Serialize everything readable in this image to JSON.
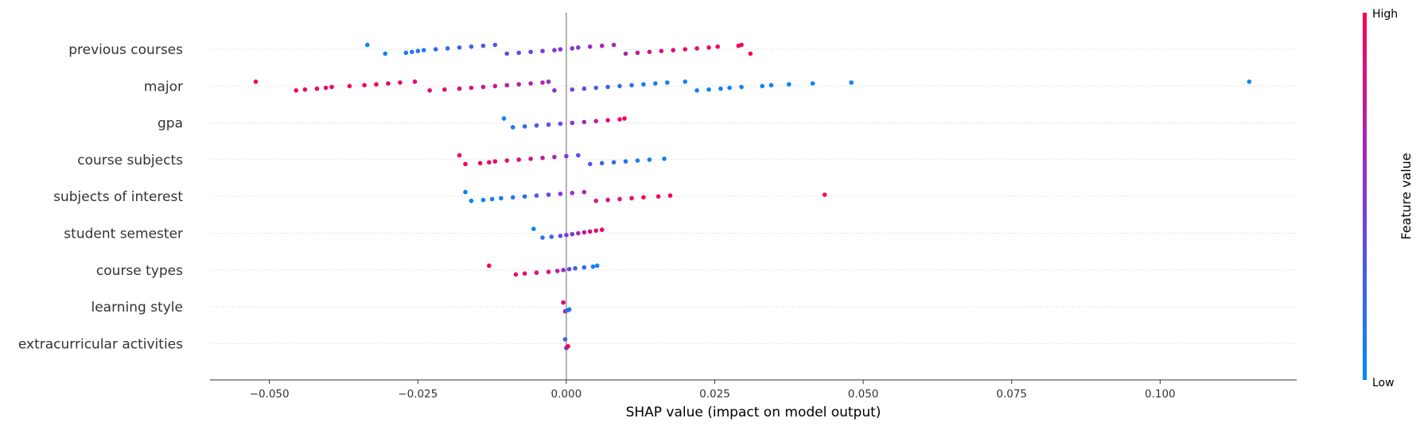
{
  "colors": {
    "low": "#008afb",
    "high": "#ff0052"
  },
  "chart_data": {
    "type": "scatter",
    "subtype": "shap-beeswarm",
    "title": "",
    "xlabel": "SHAP value (impact on model output)",
    "ylabel": "",
    "xlim": [
      -0.06,
      0.123
    ],
    "xticks": [
      -0.05,
      -0.025,
      0.0,
      0.025,
      0.05,
      0.075,
      0.1
    ],
    "xtick_labels": [
      "−0.050",
      "−0.025",
      "0.000",
      "0.025",
      "0.050",
      "0.075",
      "0.100"
    ],
    "colorbar": {
      "label": "Feature value",
      "high": "High",
      "low": "Low"
    },
    "features": [
      {
        "name": "previous courses",
        "points": [
          [
            -0.0335,
            0.05
          ],
          [
            -0.0305,
            0.05
          ],
          [
            -0.027,
            0.15
          ],
          [
            -0.026,
            0.1
          ],
          [
            -0.025,
            0.15
          ],
          [
            -0.024,
            0.1
          ],
          [
            -0.022,
            0.2
          ],
          [
            -0.02,
            0.2
          ],
          [
            -0.018,
            0.25
          ],
          [
            -0.016,
            0.25
          ],
          [
            -0.014,
            0.3
          ],
          [
            -0.012,
            0.3
          ],
          [
            -0.01,
            0.35
          ],
          [
            -0.008,
            0.4
          ],
          [
            -0.006,
            0.45
          ],
          [
            -0.004,
            0.5
          ],
          [
            -0.002,
            0.5
          ],
          [
            -0.001,
            0.5
          ],
          [
            0.001,
            0.55
          ],
          [
            0.002,
            0.55
          ],
          [
            0.004,
            0.6
          ],
          [
            0.006,
            0.65
          ],
          [
            0.008,
            0.7
          ],
          [
            0.01,
            0.7
          ],
          [
            0.012,
            0.75
          ],
          [
            0.014,
            0.8
          ],
          [
            0.016,
            0.85
          ],
          [
            0.018,
            0.85
          ],
          [
            0.02,
            0.9
          ],
          [
            0.022,
            0.9
          ],
          [
            0.024,
            0.95
          ],
          [
            0.0255,
            0.95
          ],
          [
            0.029,
            0.95
          ],
          [
            0.0295,
            0.95
          ],
          [
            0.031,
            0.95
          ]
        ]
      },
      {
        "name": "major",
        "points": [
          [
            -0.0523,
            0.95
          ],
          [
            -0.0455,
            0.95
          ],
          [
            -0.044,
            0.95
          ],
          [
            -0.042,
            0.95
          ],
          [
            -0.0405,
            0.95
          ],
          [
            -0.0395,
            0.95
          ],
          [
            -0.0365,
            0.95
          ],
          [
            -0.034,
            0.95
          ],
          [
            -0.032,
            0.95
          ],
          [
            -0.03,
            0.95
          ],
          [
            -0.028,
            0.95
          ],
          [
            -0.0255,
            0.9
          ],
          [
            -0.023,
            0.9
          ],
          [
            -0.0205,
            0.9
          ],
          [
            -0.018,
            0.85
          ],
          [
            -0.016,
            0.85
          ],
          [
            -0.014,
            0.8
          ],
          [
            -0.012,
            0.8
          ],
          [
            -0.01,
            0.75
          ],
          [
            -0.008,
            0.7
          ],
          [
            -0.006,
            0.7
          ],
          [
            -0.004,
            0.65
          ],
          [
            -0.003,
            0.6
          ],
          [
            -0.002,
            0.55
          ],
          [
            0.001,
            0.45
          ],
          [
            0.003,
            0.35
          ],
          [
            0.005,
            0.3
          ],
          [
            0.007,
            0.25
          ],
          [
            0.009,
            0.2
          ],
          [
            0.011,
            0.15
          ],
          [
            0.013,
            0.1
          ],
          [
            0.015,
            0.1
          ],
          [
            0.017,
            0.08
          ],
          [
            0.02,
            0.05
          ],
          [
            0.022,
            0.05
          ],
          [
            0.024,
            0.05
          ],
          [
            0.026,
            0.05
          ],
          [
            0.0275,
            0.05
          ],
          [
            0.0295,
            0.05
          ],
          [
            0.033,
            0.05
          ],
          [
            0.0345,
            0.05
          ],
          [
            0.0375,
            0.05
          ],
          [
            0.0415,
            0.05
          ],
          [
            0.048,
            0.05
          ],
          [
            0.115,
            0.05
          ]
        ]
      },
      {
        "name": "gpa",
        "points": [
          [
            -0.0105,
            0.05
          ],
          [
            -0.009,
            0.1
          ],
          [
            -0.007,
            0.2
          ],
          [
            -0.005,
            0.3
          ],
          [
            -0.003,
            0.4
          ],
          [
            -0.001,
            0.45
          ],
          [
            0.001,
            0.55
          ],
          [
            0.003,
            0.65
          ],
          [
            0.005,
            0.75
          ],
          [
            0.007,
            0.85
          ],
          [
            0.009,
            0.9
          ],
          [
            0.0098,
            0.95
          ]
        ]
      },
      {
        "name": "course subjects",
        "points": [
          [
            -0.018,
            0.95
          ],
          [
            -0.017,
            0.95
          ],
          [
            -0.0145,
            0.95
          ],
          [
            -0.013,
            0.95
          ],
          [
            -0.012,
            0.9
          ],
          [
            -0.01,
            0.9
          ],
          [
            -0.008,
            0.85
          ],
          [
            -0.006,
            0.8
          ],
          [
            -0.004,
            0.75
          ],
          [
            -0.002,
            0.65
          ],
          [
            0.0,
            0.5
          ],
          [
            0.002,
            0.4
          ],
          [
            0.004,
            0.3
          ],
          [
            0.006,
            0.25
          ],
          [
            0.008,
            0.2
          ],
          [
            0.01,
            0.15
          ],
          [
            0.012,
            0.1
          ],
          [
            0.014,
            0.08
          ],
          [
            0.0165,
            0.05
          ]
        ]
      },
      {
        "name": "subjects of interest",
        "points": [
          [
            -0.017,
            0.05
          ],
          [
            -0.016,
            0.05
          ],
          [
            -0.014,
            0.05
          ],
          [
            -0.0125,
            0.1
          ],
          [
            -0.011,
            0.1
          ],
          [
            -0.009,
            0.15
          ],
          [
            -0.007,
            0.2
          ],
          [
            -0.005,
            0.3
          ],
          [
            -0.003,
            0.4
          ],
          [
            -0.001,
            0.5
          ],
          [
            0.001,
            0.55
          ],
          [
            0.003,
            0.65
          ],
          [
            0.005,
            0.75
          ],
          [
            0.007,
            0.8
          ],
          [
            0.009,
            0.85
          ],
          [
            0.011,
            0.9
          ],
          [
            0.013,
            0.95
          ],
          [
            0.0155,
            0.95
          ],
          [
            0.0175,
            0.95
          ],
          [
            0.0435,
            0.95
          ]
        ]
      },
      {
        "name": "student semester",
        "points": [
          [
            -0.0055,
            0.05
          ],
          [
            -0.004,
            0.15
          ],
          [
            -0.0025,
            0.25
          ],
          [
            -0.001,
            0.4
          ],
          [
            0.0,
            0.5
          ],
          [
            0.001,
            0.55
          ],
          [
            0.002,
            0.65
          ],
          [
            0.003,
            0.75
          ],
          [
            0.004,
            0.85
          ],
          [
            0.005,
            0.9
          ],
          [
            0.006,
            0.95
          ]
        ]
      },
      {
        "name": "course types",
        "points": [
          [
            -0.013,
            0.95
          ],
          [
            -0.0085,
            0.9
          ],
          [
            -0.007,
            0.9
          ],
          [
            -0.005,
            0.85
          ],
          [
            -0.003,
            0.8
          ],
          [
            -0.0015,
            0.7
          ],
          [
            -0.0005,
            0.6
          ],
          [
            0.0005,
            0.4
          ],
          [
            0.0015,
            0.3
          ],
          [
            0.003,
            0.2
          ],
          [
            0.0045,
            0.1
          ],
          [
            0.0052,
            0.05
          ]
        ]
      },
      {
        "name": "learning style",
        "points": [
          [
            -0.0005,
            0.9
          ],
          [
            -0.0002,
            0.7
          ],
          [
            0.0002,
            0.2
          ],
          [
            0.0005,
            0.1
          ]
        ]
      },
      {
        "name": "extracurricular activities",
        "points": [
          [
            -0.0002,
            0.3
          ],
          [
            0.0,
            0.5
          ],
          [
            0.0001,
            0.6
          ],
          [
            0.0003,
            0.95
          ]
        ]
      }
    ]
  }
}
